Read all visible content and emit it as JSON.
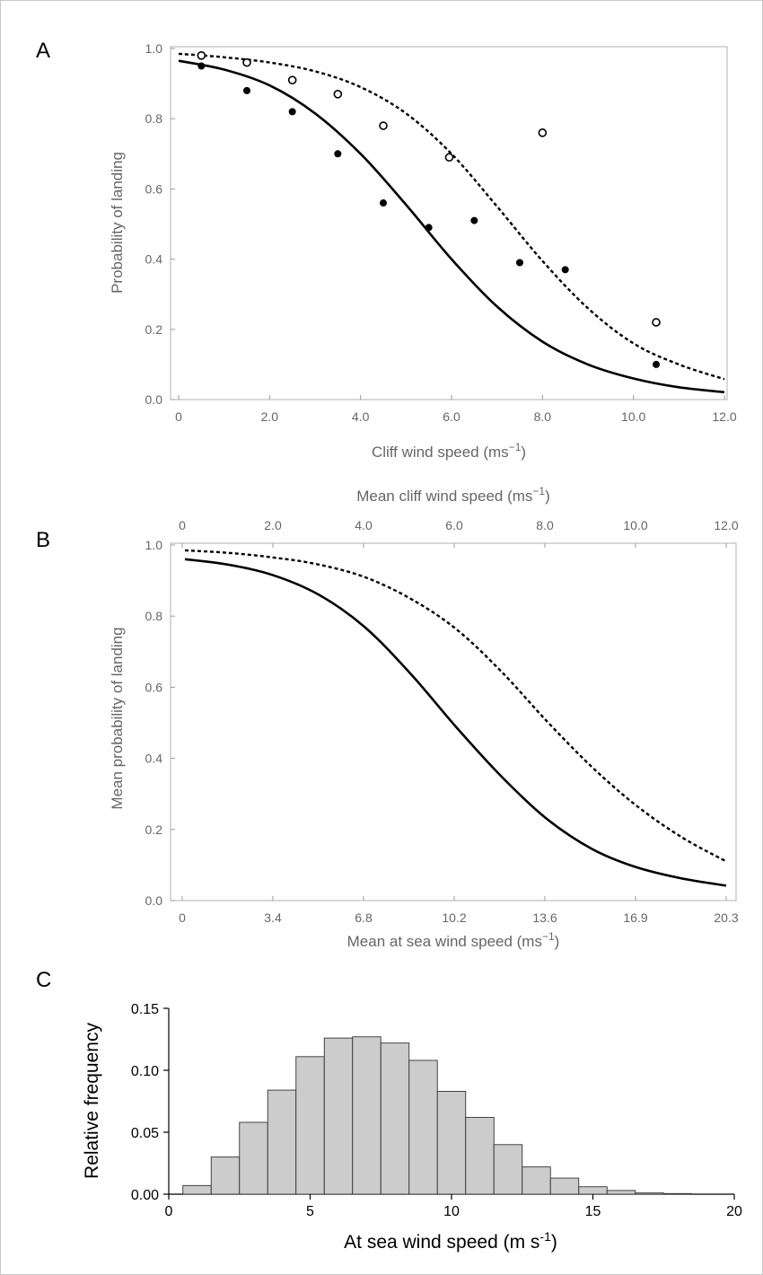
{
  "chart_data": [
    {
      "panel": "A",
      "type": "scatter",
      "xlabel": "Cliff wind speed (ms",
      "xlabel_sup": "−1",
      "xlabel_end": ")",
      "ylabel": "Probability of landing",
      "xlim": [
        0,
        12
      ],
      "ylim": [
        0,
        1
      ],
      "x_ticks": [
        "0",
        "2.0",
        "4.0",
        "6.0",
        "8.0",
        "10.0",
        "12.0"
      ],
      "y_ticks": [
        "0.0",
        "0.2",
        "0.4",
        "0.6",
        "0.8",
        "1.0"
      ],
      "series": [
        {
          "marker": "filled-circle",
          "points": [
            [
              0.5,
              0.95
            ],
            [
              1.5,
              0.88
            ],
            [
              2.5,
              0.82
            ],
            [
              3.5,
              0.7
            ],
            [
              4.5,
              0.56
            ],
            [
              5.5,
              0.49
            ],
            [
              6.5,
              0.51
            ],
            [
              7.5,
              0.39
            ],
            [
              8.5,
              0.37
            ],
            [
              10.5,
              0.1
            ]
          ]
        },
        {
          "marker": "open-circle",
          "points": [
            [
              0.5,
              0.98
            ],
            [
              1.5,
              0.96
            ],
            [
              2.5,
              0.91
            ],
            [
              3.5,
              0.87
            ],
            [
              4.5,
              0.78
            ],
            [
              5.95,
              0.69
            ],
            [
              8.0,
              0.76
            ],
            [
              10.5,
              0.22
            ]
          ]
        },
        {
          "style": "solid-line",
          "points": [
            [
              0,
              0.965
            ],
            [
              1,
              0.94
            ],
            [
              2,
              0.895
            ],
            [
              3,
              0.815
            ],
            [
              4,
              0.7
            ],
            [
              5,
              0.555
            ],
            [
              6,
              0.4
            ],
            [
              7,
              0.265
            ],
            [
              8,
              0.165
            ],
            [
              9,
              0.1
            ],
            [
              10,
              0.06
            ],
            [
              11,
              0.035
            ],
            [
              12,
              0.021
            ]
          ]
        },
        {
          "style": "dashed-line",
          "points": [
            [
              0,
              0.985
            ],
            [
              1,
              0.975
            ],
            [
              2,
              0.96
            ],
            [
              3,
              0.935
            ],
            [
              4,
              0.89
            ],
            [
              5,
              0.815
            ],
            [
              6,
              0.7
            ],
            [
              7,
              0.55
            ],
            [
              8,
              0.395
            ],
            [
              9,
              0.26
            ],
            [
              10,
              0.16
            ],
            [
              11,
              0.1
            ],
            [
              12,
              0.058
            ]
          ]
        }
      ]
    },
    {
      "panel": "B",
      "type": "line",
      "xlabel_top": "Mean cliff wind speed (ms",
      "xlabel_top_sup": "−1",
      "xlabel_top_end": ")",
      "xlabel": "Mean at sea wind speed (ms",
      "xlabel_sup": "−1",
      "xlabel_end": ")",
      "ylabel": "Mean probability of landing",
      "xlim": [
        0,
        20.3
      ],
      "ylim": [
        0,
        1
      ],
      "x_ticks": [
        "0",
        "3.4",
        "6.8",
        "10.2",
        "13.6",
        "16.9",
        "20.3"
      ],
      "x_ticks_top": [
        "0",
        "2.0",
        "4.0",
        "6.0",
        "8.0",
        "10.0",
        "12.0"
      ],
      "y_ticks": [
        "0.0",
        "0.2",
        "0.4",
        "0.6",
        "0.8",
        "1.0"
      ],
      "series": [
        {
          "style": "solid-line",
          "points": [
            [
              0.1,
              0.96
            ],
            [
              1.7,
              0.945
            ],
            [
              3.4,
              0.915
            ],
            [
              5.1,
              0.86
            ],
            [
              6.8,
              0.77
            ],
            [
              8.5,
              0.64
            ],
            [
              10.2,
              0.49
            ],
            [
              11.9,
              0.35
            ],
            [
              13.6,
              0.23
            ],
            [
              15.3,
              0.145
            ],
            [
              16.9,
              0.095
            ],
            [
              18.6,
              0.063
            ],
            [
              20.3,
              0.042
            ]
          ]
        },
        {
          "style": "dashed-line",
          "points": [
            [
              0.1,
              0.985
            ],
            [
              1.7,
              0.978
            ],
            [
              3.4,
              0.965
            ],
            [
              5.1,
              0.945
            ],
            [
              6.8,
              0.91
            ],
            [
              8.5,
              0.85
            ],
            [
              10.2,
              0.765
            ],
            [
              11.9,
              0.645
            ],
            [
              13.6,
              0.505
            ],
            [
              15.3,
              0.375
            ],
            [
              16.9,
              0.27
            ],
            [
              18.6,
              0.18
            ],
            [
              20.3,
              0.11
            ]
          ]
        }
      ]
    },
    {
      "panel": "C",
      "type": "bar",
      "xlabel": "At sea wind speed (m s",
      "xlabel_sup": "-1",
      "xlabel_end": ")",
      "ylabel": "Relative frequency",
      "xlim": [
        0,
        20
      ],
      "ylim": [
        0,
        0.15
      ],
      "x_ticks": [
        "0",
        "5",
        "10",
        "15",
        "20"
      ],
      "y_ticks": [
        "0.00",
        "0.05",
        "0.10",
        "0.15"
      ],
      "bin_width": 1,
      "bin_starts": [
        0.5,
        1.5,
        2.5,
        3.5,
        4.5,
        5.5,
        6.5,
        7.5,
        8.5,
        9.5,
        10.5,
        11.5,
        12.5,
        13.5,
        14.5,
        15.5,
        16.5,
        17.5
      ],
      "values": [
        0.007,
        0.03,
        0.058,
        0.084,
        0.111,
        0.126,
        0.127,
        0.122,
        0.108,
        0.083,
        0.062,
        0.04,
        0.022,
        0.013,
        0.006,
        0.003,
        0.001,
        0.0005
      ]
    }
  ]
}
